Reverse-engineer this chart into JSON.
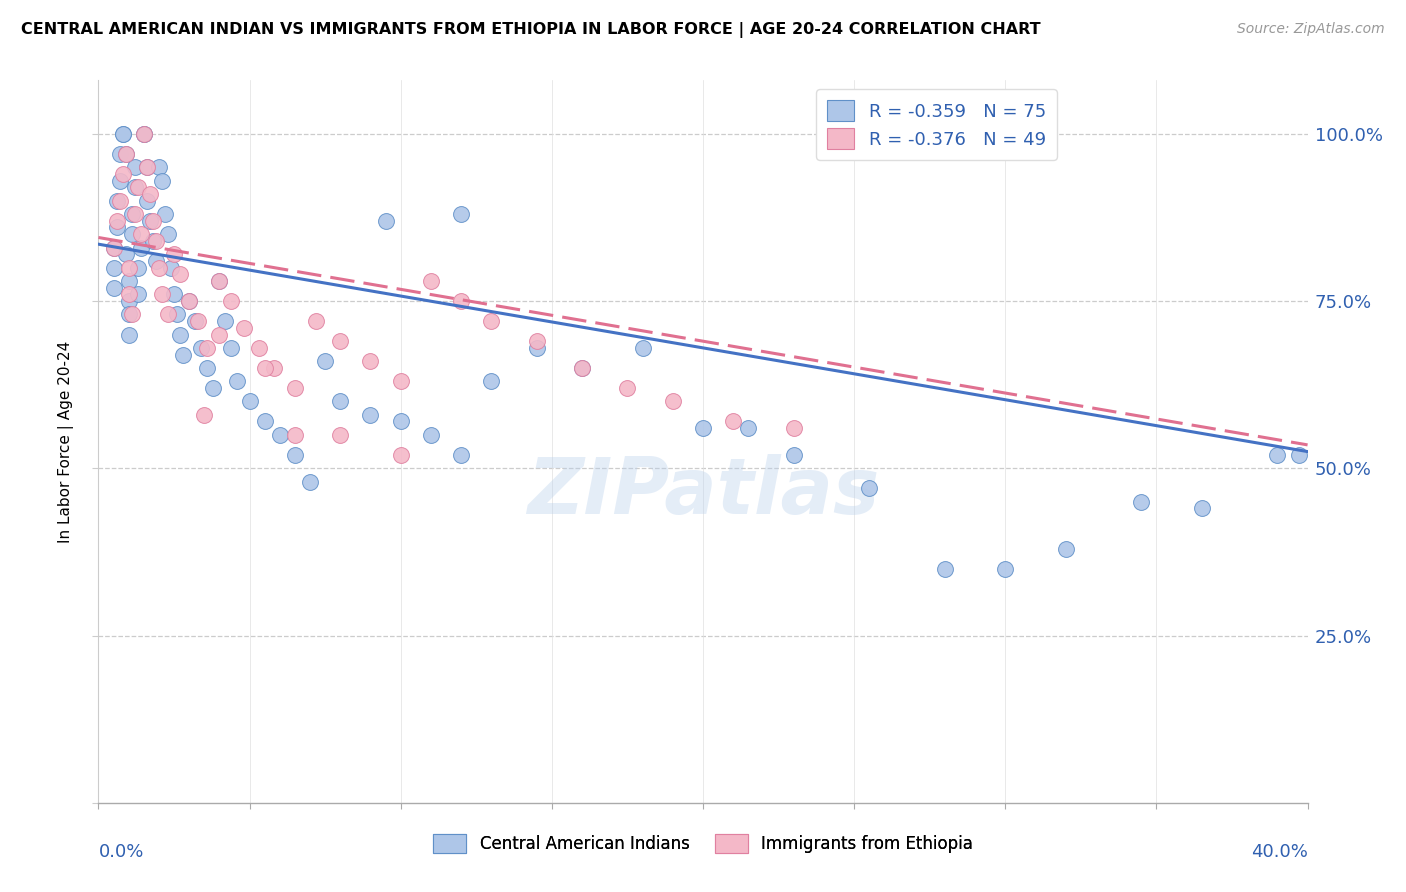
{
  "title": "CENTRAL AMERICAN INDIAN VS IMMIGRANTS FROM ETHIOPIA IN LABOR FORCE | AGE 20-24 CORRELATION CHART",
  "source": "Source: ZipAtlas.com",
  "ylabel": "In Labor Force | Age 20-24",
  "ytick_labels": [
    "",
    "25.0%",
    "50.0%",
    "75.0%",
    "100.0%"
  ],
  "ytick_values": [
    0.0,
    0.25,
    0.5,
    0.75,
    1.0
  ],
  "xmin": 0.0,
  "xmax": 0.4,
  "ymin": 0.0,
  "ymax": 1.08,
  "R_blue": -0.359,
  "N_blue": 75,
  "R_pink": -0.376,
  "N_pink": 49,
  "blue_color": "#aec6e8",
  "blue_edge_color": "#6090c8",
  "blue_line_color": "#4472c4",
  "pink_color": "#f4b8c8",
  "pink_edge_color": "#e080a0",
  "pink_line_color": "#e07090",
  "legend_label_blue": "Central American Indians",
  "legend_label_pink": "Immigrants from Ethiopia",
  "watermark": "ZIPatlas",
  "blue_line_x0": 0.0,
  "blue_line_y0": 0.835,
  "blue_line_x1": 0.4,
  "blue_line_y1": 0.525,
  "pink_line_x0": 0.0,
  "pink_line_y0": 0.845,
  "pink_line_x1": 0.4,
  "pink_line_y1": 0.535,
  "blue_scatter_x": [
    0.005,
    0.005,
    0.005,
    0.006,
    0.006,
    0.007,
    0.007,
    0.008,
    0.008,
    0.009,
    0.009,
    0.01,
    0.01,
    0.01,
    0.01,
    0.011,
    0.011,
    0.012,
    0.012,
    0.013,
    0.013,
    0.014,
    0.015,
    0.015,
    0.016,
    0.016,
    0.017,
    0.018,
    0.019,
    0.02,
    0.021,
    0.022,
    0.023,
    0.024,
    0.025,
    0.026,
    0.027,
    0.028,
    0.03,
    0.032,
    0.034,
    0.036,
    0.038,
    0.04,
    0.042,
    0.044,
    0.046,
    0.05,
    0.055,
    0.06,
    0.065,
    0.07,
    0.08,
    0.09,
    0.1,
    0.11,
    0.12,
    0.13,
    0.145,
    0.16,
    0.18,
    0.2,
    0.215,
    0.23,
    0.255,
    0.28,
    0.3,
    0.32,
    0.345,
    0.365,
    0.39,
    0.397,
    0.12,
    0.095,
    0.075
  ],
  "blue_scatter_y": [
    0.77,
    0.8,
    0.83,
    0.86,
    0.9,
    0.93,
    0.97,
    1.0,
    1.0,
    0.97,
    0.82,
    0.78,
    0.75,
    0.73,
    0.7,
    0.85,
    0.88,
    0.92,
    0.95,
    0.8,
    0.76,
    0.83,
    1.0,
    1.0,
    0.95,
    0.9,
    0.87,
    0.84,
    0.81,
    0.95,
    0.93,
    0.88,
    0.85,
    0.8,
    0.76,
    0.73,
    0.7,
    0.67,
    0.75,
    0.72,
    0.68,
    0.65,
    0.62,
    0.78,
    0.72,
    0.68,
    0.63,
    0.6,
    0.57,
    0.55,
    0.52,
    0.48,
    0.6,
    0.58,
    0.57,
    0.55,
    0.52,
    0.63,
    0.68,
    0.65,
    0.68,
    0.56,
    0.56,
    0.52,
    0.47,
    0.35,
    0.35,
    0.38,
    0.45,
    0.44,
    0.52,
    0.52,
    0.88,
    0.87,
    0.66
  ],
  "pink_scatter_x": [
    0.005,
    0.006,
    0.007,
    0.008,
    0.009,
    0.01,
    0.01,
    0.011,
    0.012,
    0.013,
    0.014,
    0.015,
    0.016,
    0.017,
    0.018,
    0.019,
    0.02,
    0.021,
    0.023,
    0.025,
    0.027,
    0.03,
    0.033,
    0.036,
    0.04,
    0.044,
    0.048,
    0.053,
    0.058,
    0.065,
    0.072,
    0.08,
    0.09,
    0.1,
    0.11,
    0.12,
    0.13,
    0.145,
    0.16,
    0.175,
    0.19,
    0.21,
    0.23,
    0.035,
    0.04,
    0.055,
    0.065,
    0.08,
    0.1
  ],
  "pink_scatter_y": [
    0.83,
    0.87,
    0.9,
    0.94,
    0.97,
    0.8,
    0.76,
    0.73,
    0.88,
    0.92,
    0.85,
    1.0,
    0.95,
    0.91,
    0.87,
    0.84,
    0.8,
    0.76,
    0.73,
    0.82,
    0.79,
    0.75,
    0.72,
    0.68,
    0.78,
    0.75,
    0.71,
    0.68,
    0.65,
    0.62,
    0.72,
    0.69,
    0.66,
    0.63,
    0.78,
    0.75,
    0.72,
    0.69,
    0.65,
    0.62,
    0.6,
    0.57,
    0.56,
    0.58,
    0.7,
    0.65,
    0.55,
    0.55,
    0.52
  ]
}
